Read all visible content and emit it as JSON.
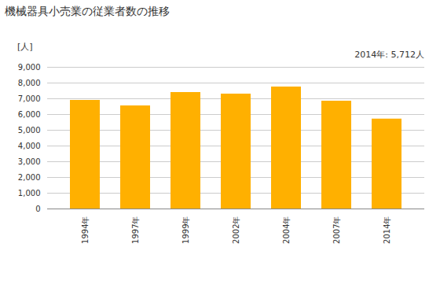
{
  "chart_data": {
    "type": "bar",
    "title": "機械器具小売業の従業者数の推移",
    "y_label": "[人]",
    "annotation": "2014年: 5,712人",
    "categories": [
      "1994年",
      "1997年",
      "1999年",
      "2002年",
      "2004年",
      "2007年",
      "2014年"
    ],
    "values": [
      6900,
      6550,
      7400,
      7300,
      7750,
      6850,
      5712
    ],
    "color": "#ffb000",
    "ylim": [
      0,
      9000
    ],
    "yticks": [
      0,
      {
        "value": 1000,
        "label": "1,000"
      },
      {
        "value": 2000,
        "label": "2,000"
      },
      {
        "value": 3000,
        "label": "3,000"
      },
      {
        "value": 4000,
        "label": "4,000"
      },
      {
        "value": 5000,
        "label": "5,000"
      },
      {
        "value": 6000,
        "label": "6,000"
      },
      {
        "value": 7000,
        "label": "7,000"
      },
      {
        "value": 8000,
        "label": "8,000"
      },
      {
        "value": 9000,
        "label": "9,000"
      }
    ],
    "grid": true
  }
}
